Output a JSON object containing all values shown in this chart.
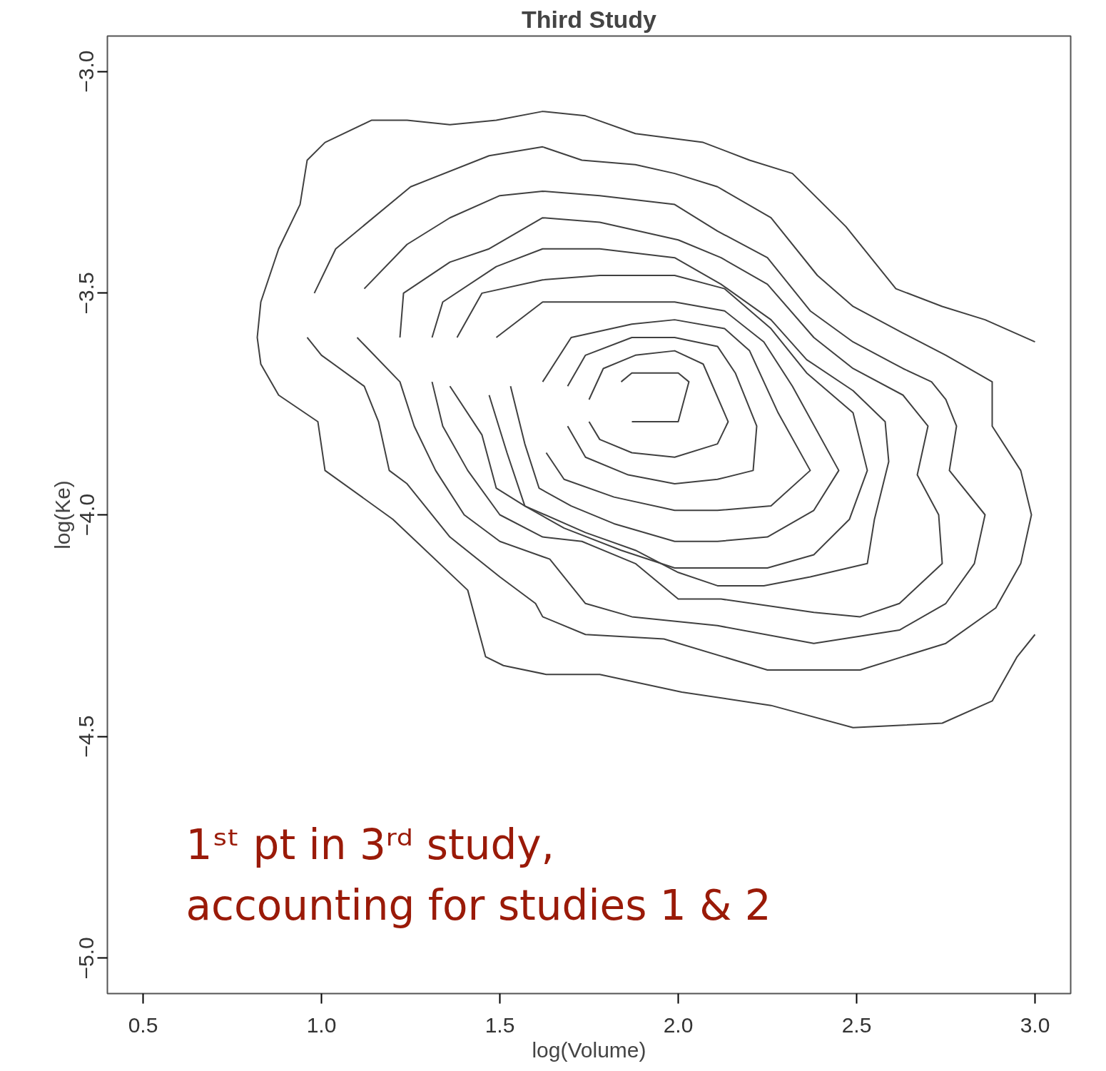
{
  "chart_data": {
    "type": "line",
    "title": "Third Study",
    "xlabel": "log(Volume)",
    "ylabel": "log(Ke)",
    "xlim": [
      0.4,
      3.1
    ],
    "ylim": [
      -5.08,
      -2.92
    ],
    "xticks": [
      {
        "value": 0.5,
        "label": "0.5"
      },
      {
        "value": 1,
        "label": "1.0"
      },
      {
        "value": 1.5,
        "label": "1.5"
      },
      {
        "value": 2,
        "label": "2.0"
      },
      {
        "value": 2.5,
        "label": "2.5"
      },
      {
        "value": 3,
        "label": "3.0"
      }
    ],
    "yticks": [
      {
        "value": -5,
        "label": "−5.0"
      },
      {
        "value": -4.5,
        "label": "−4.5"
      },
      {
        "value": -4,
        "label": "−4.0"
      },
      {
        "value": -3.5,
        "label": "−3.5"
      },
      {
        "value": -3,
        "label": "−3.0"
      }
    ],
    "grid": false,
    "annotations": [
      "1ˢᵗ pt in 3ʳᵈ study,\naccounting for studies 1 & 2"
    ],
    "series": [
      {
        "color": "#404040",
        "x": [
          3.0,
          2.86,
          2.74,
          2.61,
          2.47,
          2.32,
          2.2,
          2.07,
          1.88,
          1.74,
          1.62,
          1.49,
          1.36,
          1.24,
          1.14,
          1.01,
          0.96,
          0.94,
          0.88,
          0.83,
          0.82,
          0.83,
          0.88,
          0.99,
          1.01,
          1.2,
          1.41,
          1.46,
          1.51,
          1.63,
          1.78,
          2.01,
          2.26,
          2.49,
          2.74,
          2.88,
          2.95,
          3.0
        ],
        "values": [
          -3.61,
          -3.56,
          -3.53,
          -3.49,
          -3.35,
          -3.23,
          -3.2,
          -3.16,
          -3.14,
          -3.1,
          -3.09,
          -3.11,
          -3.12,
          -3.11,
          -3.11,
          -3.16,
          -3.2,
          -3.3,
          -3.4,
          -3.52,
          -3.6,
          -3.66,
          -3.73,
          -3.79,
          -3.9,
          -4.01,
          -4.17,
          -4.32,
          -4.34,
          -4.36,
          -4.36,
          -4.4,
          -4.43,
          -4.48,
          -4.47,
          -4.42,
          -4.32,
          -4.27
        ]
      },
      {
        "color": "#404040",
        "x": [
          0.96,
          1.0,
          1.12,
          1.16,
          1.19,
          1.24,
          1.36,
          1.5,
          1.6,
          1.62,
          1.74,
          1.96,
          2.25,
          2.39,
          2.51,
          2.75,
          2.89,
          2.96,
          2.99,
          2.96,
          2.88,
          2.88,
          2.75,
          2.63,
          2.49,
          2.39,
          2.26,
          2.11,
          1.99,
          1.88,
          1.73,
          1.62,
          1.47,
          1.25,
          1.04,
          0.98
        ],
        "values": [
          -3.6,
          -3.64,
          -3.71,
          -3.79,
          -3.9,
          -3.93,
          -4.05,
          -4.14,
          -4.2,
          -4.23,
          -4.27,
          -4.28,
          -4.35,
          -4.35,
          -4.35,
          -4.29,
          -4.21,
          -4.11,
          -4.0,
          -3.9,
          -3.8,
          -3.7,
          -3.64,
          -3.59,
          -3.53,
          -3.46,
          -3.33,
          -3.26,
          -3.23,
          -3.21,
          -3.2,
          -3.17,
          -3.19,
          -3.26,
          -3.4,
          -3.5
        ]
      },
      {
        "color": "#404040",
        "x": [
          1.1,
          1.22,
          1.26,
          1.32,
          1.4,
          1.5,
          1.64,
          1.74,
          1.87,
          2.11,
          2.38,
          2.62,
          2.75,
          2.83,
          2.86,
          2.76,
          2.78,
          2.75,
          2.71,
          2.63,
          2.49,
          2.37,
          2.25,
          2.11,
          1.99,
          1.78,
          1.62,
          1.5,
          1.36,
          1.24,
          1.12
        ],
        "values": [
          -3.6,
          -3.7,
          -3.8,
          -3.9,
          -4.0,
          -4.06,
          -4.1,
          -4.2,
          -4.23,
          -4.25,
          -4.29,
          -4.26,
          -4.2,
          -4.11,
          -4.0,
          -3.9,
          -3.8,
          -3.74,
          -3.7,
          -3.67,
          -3.61,
          -3.54,
          -3.42,
          -3.36,
          -3.3,
          -3.28,
          -3.27,
          -3.28,
          -3.33,
          -3.39,
          -3.49
        ]
      },
      {
        "color": "#404040",
        "x": [
          1.22,
          1.23,
          1.36,
          1.47,
          1.62,
          1.78,
          2.0,
          2.12,
          2.25,
          2.38,
          2.49,
          2.63,
          2.7,
          2.67,
          2.73,
          2.74,
          2.62,
          2.51,
          2.38,
          2.12,
          2.0,
          1.88,
          1.73,
          1.62,
          1.5,
          1.41,
          1.34,
          1.31
        ],
        "values": [
          -3.6,
          -3.5,
          -3.43,
          -3.4,
          -3.33,
          -3.34,
          -3.38,
          -3.42,
          -3.48,
          -3.6,
          -3.67,
          -3.73,
          -3.8,
          -3.91,
          -4.0,
          -4.11,
          -4.2,
          -4.23,
          -4.22,
          -4.19,
          -4.19,
          -4.11,
          -4.06,
          -4.05,
          -4.0,
          -3.9,
          -3.8,
          -3.7
        ]
      },
      {
        "color": "#404040",
        "x": [
          1.31,
          1.34,
          1.49,
          1.62,
          1.78,
          1.99,
          2.12,
          2.26,
          2.36,
          2.49,
          2.58,
          2.59,
          2.55,
          2.53,
          2.37,
          2.24,
          2.11,
          2.0,
          1.88,
          1.74,
          1.57,
          1.49,
          1.45,
          1.36
        ],
        "values": [
          -3.6,
          -3.52,
          -3.44,
          -3.4,
          -3.4,
          -3.42,
          -3.48,
          -3.56,
          -3.65,
          -3.72,
          -3.79,
          -3.88,
          -4.01,
          -4.11,
          -4.14,
          -4.16,
          -4.16,
          -4.13,
          -4.08,
          -4.04,
          -3.98,
          -3.94,
          -3.82,
          -3.71
        ]
      },
      {
        "color": "#404040",
        "x": [
          1.38,
          1.45,
          1.62,
          1.78,
          1.99,
          2.13,
          2.26,
          2.36,
          2.49,
          2.53,
          2.48,
          2.38,
          2.25,
          2.11,
          1.99,
          1.84,
          1.68,
          1.57,
          1.52,
          1.47
        ],
        "values": [
          -3.6,
          -3.5,
          -3.47,
          -3.46,
          -3.46,
          -3.49,
          -3.58,
          -3.68,
          -3.77,
          -3.9,
          -4.01,
          -4.09,
          -4.12,
          -4.12,
          -4.12,
          -4.08,
          -4.03,
          -3.98,
          -3.86,
          -3.73
        ]
      },
      {
        "color": "#404040",
        "x": [
          1.49,
          1.62,
          1.78,
          1.99,
          2.13,
          2.24,
          2.32,
          2.45,
          2.38,
          2.25,
          2.11,
          1.99,
          1.82,
          1.7,
          1.61,
          1.57,
          1.53
        ],
        "values": [
          -3.6,
          -3.52,
          -3.52,
          -3.52,
          -3.54,
          -3.61,
          -3.71,
          -3.9,
          -3.99,
          -4.05,
          -4.06,
          -4.06,
          -4.02,
          -3.98,
          -3.94,
          -3.84,
          -3.71
        ]
      },
      {
        "color": "#404040",
        "x": [
          1.62,
          1.7,
          1.87,
          1.99,
          2.13,
          2.2,
          2.28,
          2.37,
          2.26,
          2.11,
          1.99,
          1.82,
          1.68,
          1.63
        ],
        "values": [
          -3.7,
          -3.6,
          -3.57,
          -3.56,
          -3.58,
          -3.63,
          -3.77,
          -3.9,
          -3.98,
          -3.99,
          -3.99,
          -3.96,
          -3.92,
          -3.86
        ]
      },
      {
        "color": "#404040",
        "x": [
          1.69,
          1.74,
          1.87,
          1.99,
          2.11,
          2.16,
          2.22,
          2.21,
          2.11,
          1.99,
          1.86,
          1.74,
          1.69
        ],
        "values": [
          -3.71,
          -3.64,
          -3.6,
          -3.6,
          -3.62,
          -3.68,
          -3.8,
          -3.9,
          -3.92,
          -3.93,
          -3.91,
          -3.87,
          -3.8
        ]
      },
      {
        "color": "#404040",
        "x": [
          1.75,
          1.79,
          1.88,
          1.99,
          2.07,
          2.14,
          2.11,
          1.99,
          1.87,
          1.78,
          1.75
        ],
        "values": [
          -3.74,
          -3.67,
          -3.64,
          -3.63,
          -3.66,
          -3.79,
          -3.84,
          -3.87,
          -3.86,
          -3.83,
          -3.79
        ]
      },
      {
        "color": "#404040",
        "x": [
          1.84,
          1.87,
          2.0,
          2.03,
          2.0,
          1.87
        ],
        "values": [
          -3.7,
          -3.68,
          -3.68,
          -3.7,
          -3.79,
          -3.79
        ]
      }
    ]
  }
}
